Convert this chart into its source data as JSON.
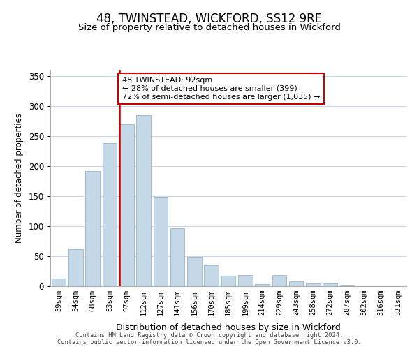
{
  "title": "48, TWINSTEAD, WICKFORD, SS12 9RE",
  "subtitle": "Size of property relative to detached houses in Wickford",
  "xlabel": "Distribution of detached houses by size in Wickford",
  "ylabel": "Number of detached properties",
  "bar_labels": [
    "39sqm",
    "54sqm",
    "68sqm",
    "83sqm",
    "97sqm",
    "112sqm",
    "127sqm",
    "141sqm",
    "156sqm",
    "170sqm",
    "185sqm",
    "199sqm",
    "214sqm",
    "229sqm",
    "243sqm",
    "258sqm",
    "272sqm",
    "287sqm",
    "302sqm",
    "316sqm",
    "331sqm"
  ],
  "bar_values": [
    13,
    62,
    192,
    238,
    270,
    285,
    149,
    96,
    49,
    35,
    17,
    19,
    4,
    19,
    8,
    5,
    5,
    1,
    0,
    0,
    0
  ],
  "bar_color": "#c5d8e8",
  "bar_edge_color": "#a0bcd4",
  "vline_color": "#cc0000",
  "vline_x": 3.575,
  "annotation_line1": "48 TWINSTEAD: 92sqm",
  "annotation_line2": "← 28% of detached houses are smaller (399)",
  "annotation_line3": "72% of semi-detached houses are larger (1,035) →",
  "annotation_box_color": "#ffffff",
  "annotation_box_edge": "#cc0000",
  "ylim": [
    0,
    360
  ],
  "yticks": [
    0,
    50,
    100,
    150,
    200,
    250,
    300,
    350
  ],
  "footer_text": "Contains HM Land Registry data © Crown copyright and database right 2024.\nContains public sector information licensed under the Open Government Licence v3.0.",
  "background_color": "#ffffff",
  "grid_color": "#c8d8e8"
}
